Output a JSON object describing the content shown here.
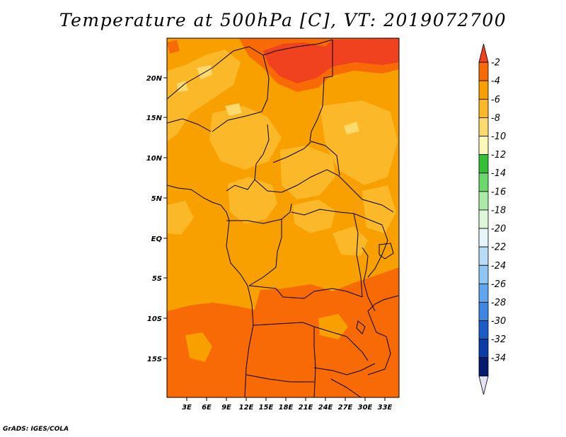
{
  "title": "Temperature at 500hPa [C], VT: 2019072700",
  "credit": "GrADS: IGES/COLA",
  "map": {
    "lon_range": [
      0,
      35
    ],
    "lat_range": [
      -20,
      25
    ],
    "lon_ticks": [
      "3E",
      "6E",
      "9E",
      "12E",
      "15E",
      "18E",
      "21E",
      "24E",
      "27E",
      "30E",
      "33E"
    ],
    "lat_ticks": [
      "20N",
      "15N",
      "10N",
      "5N",
      "EQ",
      "5S",
      "10S",
      "15S"
    ]
  },
  "colorbar": {
    "labels": [
      "-2",
      "-4",
      "-6",
      "-8",
      "-10",
      "-12",
      "-14",
      "-16",
      "-18",
      "-20",
      "-22",
      "-24",
      "-26",
      "-28",
      "-30",
      "-32",
      "-34"
    ],
    "colors": [
      "#f0421f",
      "#f86a05",
      "#f8a000",
      "#fbb829",
      "#fcda6e",
      "#fdf8ba",
      "#34c034",
      "#6bd86b",
      "#a9eba6",
      "#def7d8",
      "#e6f5fb",
      "#b6dcf8",
      "#8fc6f4",
      "#5ea7ee",
      "#3d86e2",
      "#1a5cc8",
      "#0a3ca8",
      "#061a70",
      "#e4e4f6"
    ]
  }
}
